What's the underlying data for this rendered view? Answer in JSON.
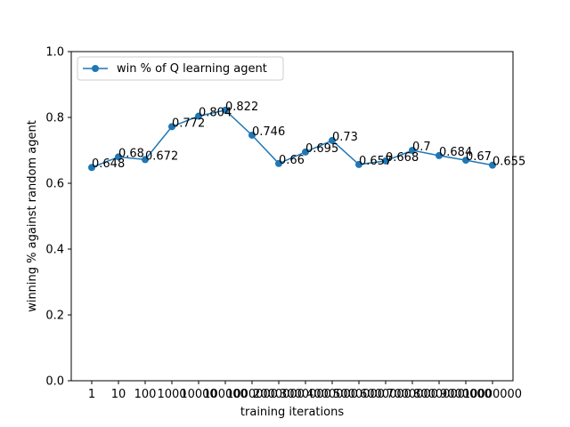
{
  "chart_data": {
    "type": "line",
    "title": "",
    "xlabel": "training iterations",
    "ylabel": "winning % against random agent",
    "ylim": [
      0.0,
      1.0
    ],
    "yticks": [
      "0.0",
      "0.2",
      "0.4",
      "0.6",
      "0.8",
      "1.0"
    ],
    "yticks_values": [
      0.0,
      0.2,
      0.4,
      0.6,
      0.8,
      1.0
    ],
    "categories": [
      "1",
      "10",
      "100",
      "1000",
      "10000",
      "100000",
      "1000000",
      "2000000",
      "3000000",
      "4000000",
      "5000000",
      "6000000",
      "7000000",
      "8000000",
      "9000000",
      "10000000"
    ],
    "series": [
      {
        "name": "win % of Q learning agent",
        "color": "#1f77b4",
        "values": [
          0.648,
          0.68,
          0.672,
          0.772,
          0.804,
          0.822,
          0.746,
          0.66,
          0.695,
          0.73,
          0.657,
          0.668,
          0.7,
          0.684,
          0.67,
          0.655
        ],
        "data_labels": [
          "0.648",
          "0.68",
          "0.672",
          "0.772",
          "0.804",
          "0.822",
          "0.746",
          "0.66",
          "0.695",
          "0.73",
          "0.657",
          "0.668",
          "0.7",
          "0.684",
          "0.67",
          "0.655"
        ]
      }
    ],
    "legend_position": "top-left",
    "grid": false
  }
}
